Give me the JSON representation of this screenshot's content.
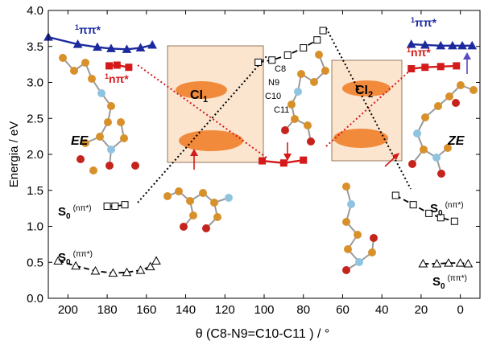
{
  "chart_data": {
    "type": "line",
    "xlabel": "θ (C8-N9=C10-C11 ) / °",
    "ylabel": "Energia / eV",
    "xlim": [
      210,
      -10
    ],
    "ylim": [
      0.0,
      4.0
    ],
    "x_ticks": [
      200,
      180,
      160,
      140,
      120,
      100,
      80,
      60,
      40,
      20,
      0
    ],
    "x_tick_labels": [
      "200",
      "180",
      "160",
      "140",
      "120",
      "100",
      "80",
      "60",
      "40",
      "20",
      "0"
    ],
    "y_ticks": [
      0.0,
      0.5,
      1.0,
      1.5,
      2.0,
      2.5,
      3.0,
      3.5,
      4.0
    ],
    "y_tick_labels": [
      "0.0",
      "0.5",
      "1.0",
      "1.5",
      "2.0",
      "2.5",
      "3.0",
      "3.5",
      "4.0"
    ],
    "colors": {
      "pipi_excited": "#1c2a9e",
      "npi_excited": "#d41a1a",
      "ground": "#000000",
      "ci_box_fill": "#fbe5cf",
      "ci_lobe": "#f28a3c",
      "molecule_carbon": "#d8902a",
      "molecule_nitrogen": "#8fc4e0",
      "molecule_oxygen": "#c4241c"
    },
    "series": [
      {
        "name": "1ππ*",
        "marker": "filled-triangle",
        "color": "#1c2a9e",
        "x": [
          210,
          195,
          185,
          178,
          170,
          163,
          157
        ],
        "y": [
          3.63,
          3.53,
          3.49,
          3.47,
          3.46,
          3.48,
          3.52
        ]
      },
      {
        "name": "1ππ*",
        "marker": "filled-triangle",
        "color": "#1c2a9e",
        "x": [
          25,
          18,
          10,
          4,
          -1,
          -6
        ],
        "y": [
          3.53,
          3.52,
          3.51,
          3.51,
          3.51,
          3.51
        ]
      },
      {
        "name": "1nπ*",
        "marker": "filled-square",
        "color": "#d41a1a",
        "x": [
          179,
          175,
          169
        ],
        "y": [
          3.23,
          3.24,
          3.21
        ]
      },
      {
        "name": "1nπ*",
        "marker": "filled-square",
        "color": "#d41a1a",
        "x": [
          101,
          90,
          80
        ],
        "y": [
          1.91,
          1.88,
          1.92
        ]
      },
      {
        "name": "1nπ*",
        "marker": "filled-square",
        "color": "#d41a1a",
        "x": [
          25,
          18,
          10,
          2
        ],
        "y": [
          3.19,
          3.21,
          3.22,
          3.23
        ]
      },
      {
        "name": "S0 (ππ*)",
        "marker": "open-triangle",
        "color": "#000000",
        "x": [
          205,
          196,
          186,
          177,
          170,
          163,
          158,
          155
        ],
        "y": [
          0.52,
          0.45,
          0.38,
          0.35,
          0.36,
          0.39,
          0.44,
          0.52
        ]
      },
      {
        "name": "S0 (nπ*)",
        "marker": "open-square",
        "color": "#000000",
        "x": [
          180,
          176,
          171
        ],
        "y": [
          1.28,
          1.28,
          1.3
        ]
      },
      {
        "name": "S0 (nπ*)",
        "marker": "open-square",
        "color": "#000000",
        "x": [
          103,
          96,
          88,
          80,
          73,
          70
        ],
        "y": [
          3.28,
          3.31,
          3.38,
          3.48,
          3.59,
          3.72
        ]
      },
      {
        "name": "S0 (nπ*)",
        "marker": "open-square",
        "color": "#000000",
        "x": [
          33,
          24,
          16,
          10,
          3
        ],
        "y": [
          1.43,
          1.3,
          1.18,
          1.12,
          1.07
        ]
      },
      {
        "name": "S0 (ππ*)",
        "marker": "open-triangle",
        "color": "#000000",
        "x": [
          19,
          12,
          6,
          0,
          -4
        ],
        "y": [
          0.48,
          0.48,
          0.49,
          0.49,
          0.48
        ]
      }
    ],
    "text_labels": {
      "ee": "EE",
      "ze": "ZE",
      "ci1_base": "CI",
      "ci1_sub": "1",
      "ci2_base": "CI",
      "ci2_sub": "2",
      "pipi_left_sup": "1",
      "pipi_left_main": "ππ*",
      "npi_left_sup": "1",
      "npi_left_main": "nπ*",
      "pipi_right_sup": "1",
      "pipi_right_main": "ππ*",
      "npi_right_sup": "1",
      "npi_right_main": "nπ*",
      "s0_label": "S",
      "s0_sub": "0",
      "s0_npi_paren": "(nπ*)",
      "s0_pipi_paren": "(ππ*)",
      "atom_c8": "C8",
      "atom_n9": "N9",
      "atom_c10": "C10",
      "atom_c11": "C11"
    }
  }
}
